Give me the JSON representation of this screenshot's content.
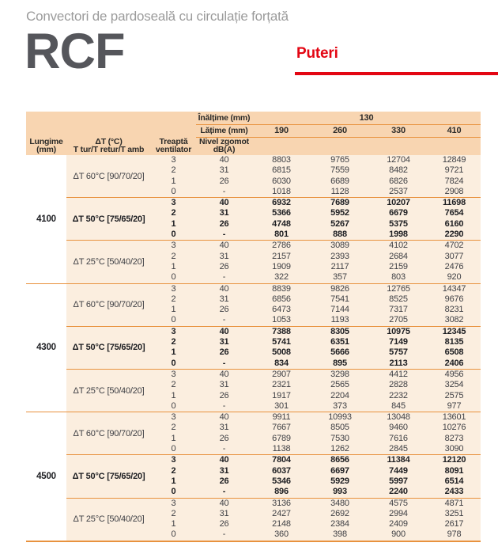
{
  "header": {
    "subtitle": "Convectori de pardoseală cu circulație forțată",
    "model": "RCF",
    "section_title": "Puteri"
  },
  "colors": {
    "accent_red": "#e30613",
    "rule_orange": "#e8923e",
    "header_bg": "#f8d5b1",
    "body_bg": "#fbeedf",
    "model_gray": "#55565b",
    "subtitle_gray": "#9b9b9b"
  },
  "table": {
    "height_row": {
      "label": "Înălțime (mm)",
      "value": "130"
    },
    "width_row": {
      "label": "Lățime (mm)",
      "values": [
        "190",
        "260",
        "330",
        "410"
      ]
    },
    "columns": {
      "length_line1": "Lungime",
      "length_line2": "(mm)",
      "dt_line1": "ΔT (°C)",
      "dt_line2": "T tur/T retur/T amb",
      "fan_line1": "Treaptă",
      "fan_line2": "ventilator",
      "noise_line1": "Nivel zgomot",
      "noise_line2": "dB(A)"
    },
    "groups": [
      {
        "length": "4100",
        "sections": [
          {
            "dt_label": "ΔT 60°C [90/70/20]",
            "bold": false,
            "rows": [
              {
                "fan": "3",
                "noise": "40",
                "values": [
                  "8803",
                  "9765",
                  "12704",
                  "12849"
                ]
              },
              {
                "fan": "2",
                "noise": "31",
                "values": [
                  "6815",
                  "7559",
                  "8482",
                  "9721"
                ]
              },
              {
                "fan": "1",
                "noise": "26",
                "values": [
                  "6030",
                  "6689",
                  "6826",
                  "7824"
                ]
              },
              {
                "fan": "0",
                "noise": "-",
                "values": [
                  "1018",
                  "1128",
                  "2537",
                  "2908"
                ]
              }
            ]
          },
          {
            "dt_label": "ΔT 50°C [75/65/20]",
            "bold": true,
            "rows": [
              {
                "fan": "3",
                "noise": "40",
                "values": [
                  "6932",
                  "7689",
                  "10207",
                  "11698"
                ]
              },
              {
                "fan": "2",
                "noise": "31",
                "values": [
                  "5366",
                  "5952",
                  "6679",
                  "7654"
                ]
              },
              {
                "fan": "1",
                "noise": "26",
                "values": [
                  "4748",
                  "5267",
                  "5375",
                  "6160"
                ]
              },
              {
                "fan": "0",
                "noise": "-",
                "values": [
                  "801",
                  "888",
                  "1998",
                  "2290"
                ]
              }
            ]
          },
          {
            "dt_label": "ΔT 25°C [50/40/20]",
            "bold": false,
            "rows": [
              {
                "fan": "3",
                "noise": "40",
                "values": [
                  "2786",
                  "3089",
                  "4102",
                  "4702"
                ]
              },
              {
                "fan": "2",
                "noise": "31",
                "values": [
                  "2157",
                  "2393",
                  "2684",
                  "3077"
                ]
              },
              {
                "fan": "1",
                "noise": "26",
                "values": [
                  "1909",
                  "2117",
                  "2159",
                  "2476"
                ]
              },
              {
                "fan": "0",
                "noise": "-",
                "values": [
                  "322",
                  "357",
                  "803",
                  "920"
                ]
              }
            ]
          }
        ]
      },
      {
        "length": "4300",
        "sections": [
          {
            "dt_label": "ΔT 60°C [90/70/20]",
            "bold": false,
            "rows": [
              {
                "fan": "3",
                "noise": "40",
                "values": [
                  "8839",
                  "9826",
                  "12765",
                  "14347"
                ]
              },
              {
                "fan": "2",
                "noise": "31",
                "values": [
                  "6856",
                  "7541",
                  "8525",
                  "9676"
                ]
              },
              {
                "fan": "1",
                "noise": "26",
                "values": [
                  "6473",
                  "7144",
                  "7317",
                  "8231"
                ]
              },
              {
                "fan": "0",
                "noise": "-",
                "values": [
                  "1053",
                  "1193",
                  "2705",
                  "3082"
                ]
              }
            ]
          },
          {
            "dt_label": "ΔT 50°C [75/65/20]",
            "bold": true,
            "rows": [
              {
                "fan": "3",
                "noise": "40",
                "values": [
                  "7388",
                  "8305",
                  "10975",
                  "12345"
                ]
              },
              {
                "fan": "2",
                "noise": "31",
                "values": [
                  "5741",
                  "6351",
                  "7149",
                  "8135"
                ]
              },
              {
                "fan": "1",
                "noise": "26",
                "values": [
                  "5008",
                  "5666",
                  "5757",
                  "6508"
                ]
              },
              {
                "fan": "0",
                "noise": "-",
                "values": [
                  "834",
                  "895",
                  "2113",
                  "2406"
                ]
              }
            ]
          },
          {
            "dt_label": "ΔT 25°C [50/40/20]",
            "bold": false,
            "rows": [
              {
                "fan": "3",
                "noise": "40",
                "values": [
                  "2907",
                  "3298",
                  "4412",
                  "4956"
                ]
              },
              {
                "fan": "2",
                "noise": "31",
                "values": [
                  "2321",
                  "2565",
                  "2828",
                  "3254"
                ]
              },
              {
                "fan": "1",
                "noise": "26",
                "values": [
                  "1917",
                  "2204",
                  "2232",
                  "2575"
                ]
              },
              {
                "fan": "0",
                "noise": "-",
                "values": [
                  "301",
                  "373",
                  "845",
                  "977"
                ]
              }
            ]
          }
        ]
      },
      {
        "length": "4500",
        "sections": [
          {
            "dt_label": "ΔT 60°C [90/70/20]",
            "bold": false,
            "rows": [
              {
                "fan": "3",
                "noise": "40",
                "values": [
                  "9911",
                  "10993",
                  "13048",
                  "13601"
                ]
              },
              {
                "fan": "2",
                "noise": "31",
                "values": [
                  "7667",
                  "8505",
                  "9460",
                  "10276"
                ]
              },
              {
                "fan": "1",
                "noise": "26",
                "values": [
                  "6789",
                  "7530",
                  "7616",
                  "8273"
                ]
              },
              {
                "fan": "0",
                "noise": "-",
                "values": [
                  "1138",
                  "1262",
                  "2845",
                  "3090"
                ]
              }
            ]
          },
          {
            "dt_label": "ΔT 50°C [75/65/20]",
            "bold": true,
            "rows": [
              {
                "fan": "3",
                "noise": "40",
                "values": [
                  "7804",
                  "8656",
                  "11384",
                  "12120"
                ]
              },
              {
                "fan": "2",
                "noise": "31",
                "values": [
                  "6037",
                  "6697",
                  "7449",
                  "8091"
                ]
              },
              {
                "fan": "1",
                "noise": "26",
                "values": [
                  "5346",
                  "5929",
                  "5997",
                  "6514"
                ]
              },
              {
                "fan": "0",
                "noise": "-",
                "values": [
                  "896",
                  "993",
                  "2240",
                  "2433"
                ]
              }
            ]
          },
          {
            "dt_label": "ΔT 25°C [50/40/20]",
            "bold": false,
            "rows": [
              {
                "fan": "3",
                "noise": "40",
                "values": [
                  "3136",
                  "3480",
                  "4575",
                  "4871"
                ]
              },
              {
                "fan": "2",
                "noise": "31",
                "values": [
                  "2427",
                  "2692",
                  "2994",
                  "3251"
                ]
              },
              {
                "fan": "1",
                "noise": "26",
                "values": [
                  "2148",
                  "2384",
                  "2409",
                  "2617"
                ]
              },
              {
                "fan": "0",
                "noise": "-",
                "values": [
                  "360",
                  "398",
                  "900",
                  "978"
                ]
              }
            ]
          }
        ]
      }
    ]
  }
}
